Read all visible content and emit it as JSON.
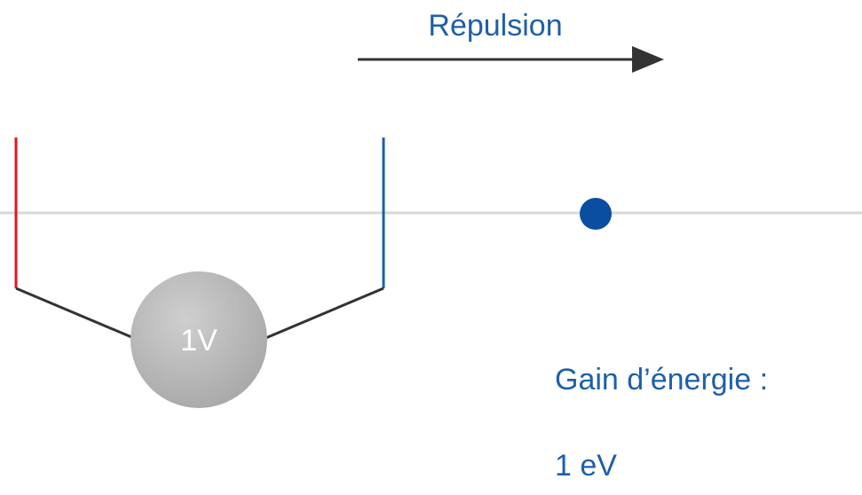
{
  "labels": {
    "arrow": "Répulsion",
    "voltage": "1V",
    "gain_title": "Gain d’énergie :",
    "gain_value": "1 eV"
  }
}
